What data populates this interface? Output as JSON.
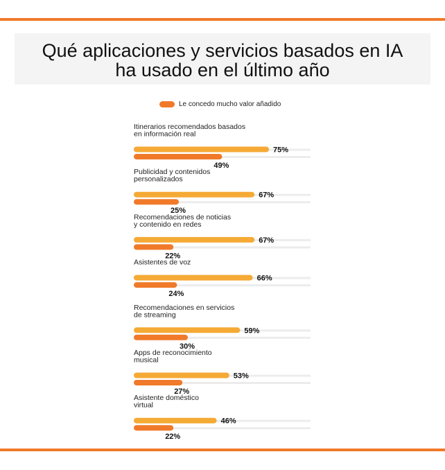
{
  "header": {
    "title_line1": "Qué aplicaciones y servicios basados en IA",
    "title_line2": "ha usado en el último año"
  },
  "legend": {
    "label": "Le concedo mucho valor añadido"
  },
  "colors": {
    "accent_rule": "#f07a2a",
    "used_bar": "#f5aa35",
    "value_bar": "#f07a2a",
    "track": "#ececec",
    "title_band": "#f4f4f4"
  },
  "chart_data": {
    "type": "bar",
    "orientation": "horizontal",
    "title": "Qué aplicaciones y servicios basados en IA ha usado en el último año",
    "categories": [
      [
        "Itinerarios recomendados basados",
        "en información real"
      ],
      [
        "Publicidad y contenidos",
        "personalizados"
      ],
      [
        "Recomendaciones de noticias",
        "y contenido en redes"
      ],
      [
        "Asistentes de voz"
      ],
      [
        "Recomendaciones en servicios",
        "de streaming"
      ],
      [
        "Apps de reconocimiento",
        "musical"
      ],
      [
        "Asistente doméstico",
        "virtual"
      ]
    ],
    "series": [
      {
        "values": [
          75,
          67,
          67,
          66,
          59,
          53,
          46
        ],
        "labels": [
          "75%",
          "67%",
          "67%",
          "66%",
          "59%",
          "53%",
          "46%"
        ],
        "color": "#f5aa35"
      },
      {
        "name": "Le concedo mucho valor añadido",
        "values": [
          49,
          25,
          22,
          24,
          30,
          27,
          22
        ],
        "labels": [
          "49%",
          "25%",
          "22%",
          "24%",
          "30%",
          "27%",
          "22%"
        ],
        "color": "#f07a2a"
      }
    ],
    "xlim": [
      0,
      100
    ],
    "unit": "%",
    "grid": false,
    "legend_position": "top"
  }
}
